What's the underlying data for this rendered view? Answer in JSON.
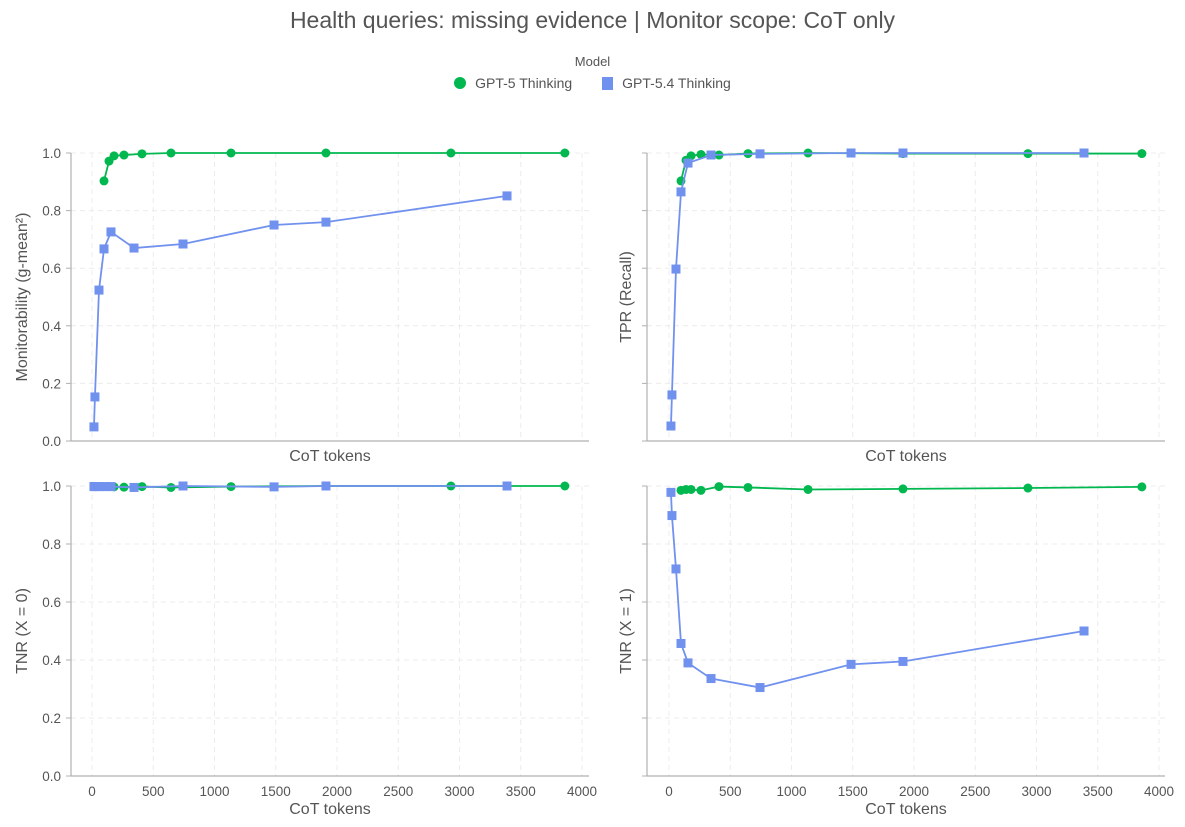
{
  "chart_data": {
    "title": "Health queries: missing evidence | Monitor scope: CoT only",
    "legend": {
      "title": "Model",
      "placement": "top-center",
      "entries": [
        {
          "name": "GPT-5 Thinking",
          "marker": "circle",
          "color": "#00b84f"
        },
        {
          "name": "GPT-5.4 Thinking",
          "marker": "square",
          "color": "#7191ee"
        }
      ]
    },
    "x_ticks": [
      "0",
      "500",
      "1000",
      "1500",
      "2000",
      "2500",
      "3000",
      "3500",
      "4000"
    ],
    "y_ticks": [
      "0.0",
      "0.2",
      "0.4",
      "0.6",
      "0.8",
      "1.0"
    ],
    "panels": [
      {
        "id": "monitorability",
        "type": "line",
        "ylabel": "Monitorability (g-mean²)",
        "xlabel": "CoT tokens",
        "xlim": [
          -170,
          4080
        ],
        "ylim": [
          0,
          1
        ],
        "grid": true,
        "show_y_ticklabels": true,
        "show_x_ticklabels": false,
        "series": [
          {
            "name": "GPT-5 Thinking",
            "x": [
              98,
              139,
              180,
              261,
              408,
              645,
              1135,
              1910,
              2930,
              3860
            ],
            "y": [
              0.903,
              0.972,
              0.99,
              0.993,
              0.997,
              1.0,
              1.0,
              1.0,
              1.0,
              1.0
            ]
          },
          {
            "name": "GPT-5.4 Thinking",
            "x": [
              16,
              24,
              57,
              98,
              155,
              343,
              743,
              1486,
              1910,
              3388
            ],
            "y": [
              0.049,
              0.153,
              0.524,
              0.667,
              0.726,
              0.67,
              0.684,
              0.75,
              0.76,
              0.851
            ]
          }
        ]
      },
      {
        "id": "tpr",
        "type": "line",
        "ylabel": "TPR (Recall)",
        "xlabel": "CoT tokens",
        "xlim": [
          -170,
          4080
        ],
        "ylim": [
          0,
          1
        ],
        "grid": true,
        "show_y_ticklabels": false,
        "show_x_ticklabels": false,
        "series": [
          {
            "name": "GPT-5 Thinking",
            "x": [
              98,
              139,
              180,
              261,
              408,
              645,
              1135,
              1910,
              2930,
              3860
            ],
            "y": [
              0.903,
              0.975,
              0.99,
              0.995,
              0.993,
              0.998,
              1.0,
              0.998,
              0.998,
              0.998
            ]
          },
          {
            "name": "GPT-5.4 Thinking",
            "x": [
              16,
              24,
              57,
              98,
              155,
              343,
              743,
              1486,
              1910,
              3388
            ],
            "y": [
              0.052,
              0.16,
              0.597,
              0.865,
              0.965,
              0.993,
              0.997,
              1.0,
              1.0,
              1.0
            ]
          }
        ]
      },
      {
        "id": "tnr-x0",
        "type": "line",
        "ylabel": "TNR (X = 0)",
        "xlabel": "CoT tokens",
        "xlim": [
          -170,
          4080
        ],
        "ylim": [
          0,
          1
        ],
        "grid": true,
        "show_y_ticklabels": true,
        "show_x_ticklabels": true,
        "series": [
          {
            "name": "GPT-5 Thinking",
            "x": [
              98,
              139,
              180,
              261,
              408,
              645,
              1135,
              1910,
              2930,
              3860
            ],
            "y": [
              0.998,
              0.998,
              0.997,
              0.996,
              0.998,
              0.995,
              0.998,
              1.0,
              1.0,
              1.0
            ]
          },
          {
            "name": "GPT-5.4 Thinking",
            "x": [
              16,
              24,
              57,
              98,
              155,
              343,
              743,
              1486,
              1910,
              3388
            ],
            "y": [
              0.998,
              0.998,
              0.998,
              0.998,
              0.998,
              0.995,
              1.0,
              0.997,
              1.0,
              1.0
            ]
          }
        ]
      },
      {
        "id": "tnr-x1",
        "type": "line",
        "ylabel": "TNR (X = 1)",
        "xlabel": "CoT tokens",
        "xlim": [
          -170,
          4080
        ],
        "ylim": [
          0,
          1
        ],
        "grid": true,
        "show_y_ticklabels": false,
        "show_x_ticklabels": true,
        "series": [
          {
            "name": "GPT-5 Thinking",
            "x": [
              98,
              139,
              180,
              261,
              408,
              645,
              1135,
              1910,
              2930,
              3860
            ],
            "y": [
              0.985,
              0.988,
              0.988,
              0.985,
              0.998,
              0.995,
              0.988,
              0.99,
              0.993,
              0.997
            ]
          },
          {
            "name": "GPT-5.4 Thinking",
            "x": [
              16,
              24,
              57,
              98,
              155,
              343,
              743,
              1486,
              1910,
              3388
            ],
            "y": [
              0.978,
              0.898,
              0.714,
              0.457,
              0.39,
              0.336,
              0.305,
              0.385,
              0.395,
              0.5
            ]
          }
        ]
      }
    ]
  }
}
